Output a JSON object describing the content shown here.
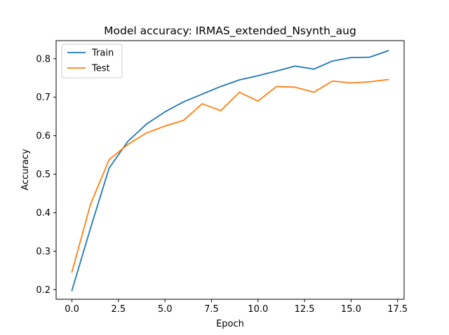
{
  "chart_data": {
    "type": "line",
    "title": "Model accuracy: IRMAS_extended_Nsynth_aug",
    "xlabel": "Epoch",
    "ylabel": "Accuracy",
    "xlim": [
      -0.85,
      17.85
    ],
    "ylim": [
      0.175,
      0.847
    ],
    "xticks": [
      0.0,
      2.5,
      5.0,
      7.5,
      10.0,
      12.5,
      15.0,
      17.5
    ],
    "xtick_labels": [
      "0.0",
      "2.5",
      "5.0",
      "7.5",
      "10.0",
      "12.5",
      "15.0",
      "17.5"
    ],
    "yticks": [
      0.2,
      0.3,
      0.4,
      0.5,
      0.6,
      0.7,
      0.8
    ],
    "ytick_labels": [
      "0.2",
      "0.3",
      "0.4",
      "0.5",
      "0.6",
      "0.7",
      "0.8"
    ],
    "grid": false,
    "legend_position": "upper-left",
    "x": [
      0,
      1,
      2,
      3,
      4,
      5,
      6,
      7,
      8,
      9,
      10,
      11,
      12,
      13,
      14,
      15,
      16,
      17
    ],
    "series": [
      {
        "name": "Train",
        "color": "#1f77b4",
        "values": [
          0.198,
          0.36,
          0.516,
          0.585,
          0.63,
          0.662,
          0.688,
          0.708,
          0.728,
          0.745,
          0.756,
          0.768,
          0.781,
          0.773,
          0.794,
          0.803,
          0.804,
          0.821
        ]
      },
      {
        "name": "Test",
        "color": "#ff7f0e",
        "values": [
          0.246,
          0.422,
          0.538,
          0.577,
          0.607,
          0.625,
          0.64,
          0.683,
          0.665,
          0.713,
          0.69,
          0.728,
          0.726,
          0.713,
          0.742,
          0.737,
          0.74,
          0.746
        ]
      }
    ]
  }
}
